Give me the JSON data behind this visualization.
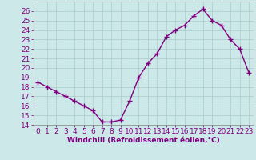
{
  "x": [
    0,
    1,
    2,
    3,
    4,
    5,
    6,
    7,
    8,
    9,
    10,
    11,
    12,
    13,
    14,
    15,
    16,
    17,
    18,
    19,
    20,
    21,
    22,
    23
  ],
  "y": [
    18.5,
    18.0,
    17.5,
    17.0,
    16.5,
    16.0,
    15.5,
    14.3,
    14.3,
    14.5,
    16.5,
    19.0,
    20.5,
    21.5,
    23.3,
    24.0,
    24.5,
    25.5,
    26.2,
    25.0,
    24.5,
    23.0,
    22.0,
    19.5
  ],
  "line_color": "#800080",
  "marker": "+",
  "marker_size": 4,
  "bg_color": "#cce8e8",
  "grid_color": "#aacccc",
  "xlabel": "Windchill (Refroidissement éolien,°C)",
  "ylim": [
    14,
    27
  ],
  "xlim": [
    -0.5,
    23.5
  ],
  "yticks": [
    14,
    15,
    16,
    17,
    18,
    19,
    20,
    21,
    22,
    23,
    24,
    25,
    26
  ],
  "xticks": [
    0,
    1,
    2,
    3,
    4,
    5,
    6,
    7,
    8,
    9,
    10,
    11,
    12,
    13,
    14,
    15,
    16,
    17,
    18,
    19,
    20,
    21,
    22,
    23
  ],
  "xlabel_fontsize": 6.5,
  "tick_fontsize": 6.5,
  "line_width": 1.0,
  "text_color": "#800080",
  "spine_color": "#808080"
}
